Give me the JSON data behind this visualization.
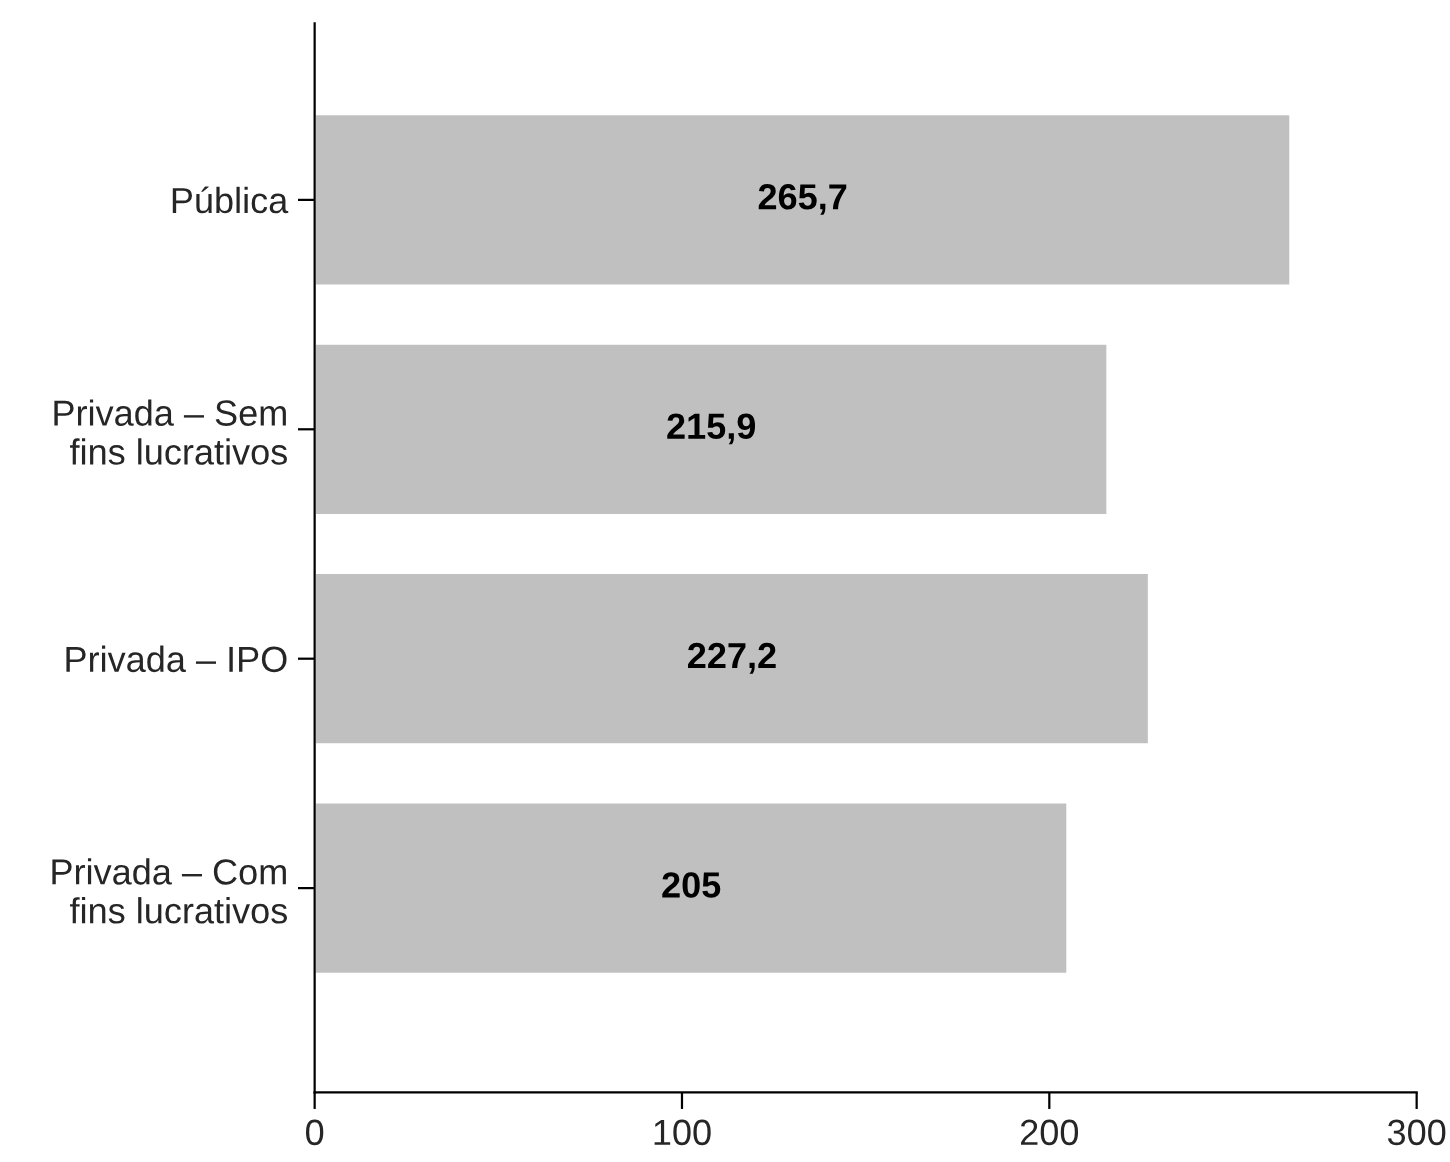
{
  "chart_data": {
    "type": "bar",
    "orientation": "horizontal",
    "categories": [
      "Pública",
      "Privada – Sem\nfins lucrativos",
      "Privada – IPO",
      "Privada – Com\nfins lucrativos"
    ],
    "values": [
      265.7,
      215.9,
      227.2,
      205
    ],
    "value_labels": [
      "265,7",
      "215,9",
      "227,2",
      "205"
    ],
    "color": "#c0c0c0",
    "xlim": [
      0,
      300
    ],
    "xticks": [
      0,
      100,
      200,
      300
    ],
    "grid": false,
    "legend": false
  }
}
